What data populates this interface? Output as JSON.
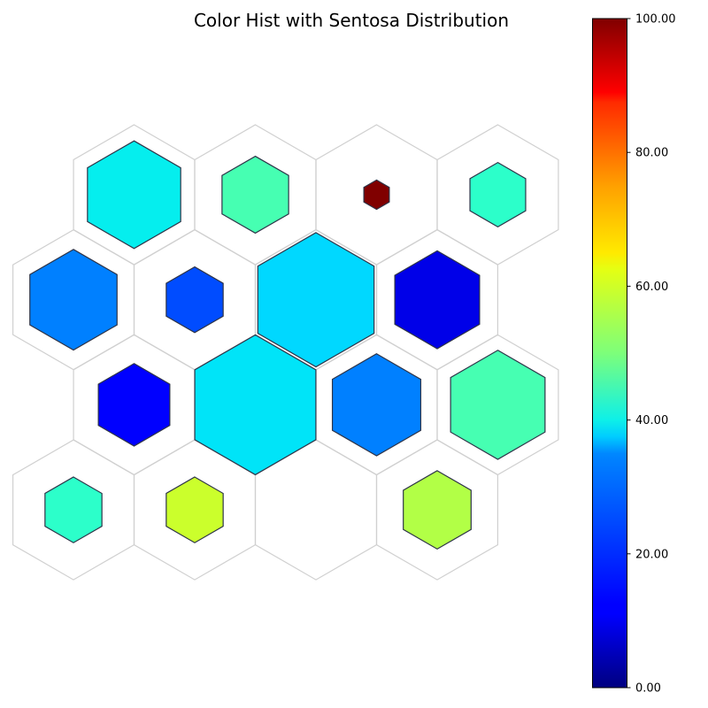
{
  "chart_data": {
    "type": "heatmap",
    "subtype": "hexagonal-som-grid",
    "title": "Color Hist with Sentosa Distribution",
    "grid": {
      "rows": 4,
      "cols": 4,
      "layout": "pointy-top offset hexagons, even rows shifted right"
    },
    "colormap": "jet",
    "colorbar": {
      "vmin": 0,
      "vmax": 100,
      "ticks": [
        0,
        20,
        40,
        60,
        80,
        100
      ],
      "tick_labels": [
        "0.00",
        "20.00",
        "40.00",
        "60.00",
        "80.00",
        "100.00"
      ]
    },
    "cells": [
      {
        "row": 0,
        "col": 0,
        "value": 37,
        "size": 0.77,
        "color": "#05eeee"
      },
      {
        "row": 0,
        "col": 1,
        "value": 46,
        "size": 0.55,
        "color": "#46ffb2"
      },
      {
        "row": 0,
        "col": 2,
        "value": 100,
        "size": 0.21,
        "color": "#800000"
      },
      {
        "row": 0,
        "col": 3,
        "value": 42,
        "size": 0.46,
        "color": "#2cffca"
      },
      {
        "row": 1,
        "col": 0,
        "value": 24,
        "size": 0.72,
        "color": "#0080ff"
      },
      {
        "row": 1,
        "col": 1,
        "value": 19,
        "size": 0.47,
        "color": "#004cff"
      },
      {
        "row": 1,
        "col": 2,
        "value": 33,
        "size": 0.96,
        "color": "#00d8ff"
      },
      {
        "row": 1,
        "col": 3,
        "value": 10,
        "size": 0.7,
        "color": "#0000e8"
      },
      {
        "row": 2,
        "col": 0,
        "value": 12,
        "size": 0.59,
        "color": "#0000ff"
      },
      {
        "row": 2,
        "col": 1,
        "value": 35,
        "size": 1.0,
        "color": "#00e4f8"
      },
      {
        "row": 2,
        "col": 2,
        "value": 24,
        "size": 0.73,
        "color": "#0080ff"
      },
      {
        "row": 2,
        "col": 3,
        "value": 46,
        "size": 0.78,
        "color": "#46ffb2"
      },
      {
        "row": 3,
        "col": 0,
        "value": 42,
        "size": 0.47,
        "color": "#2cffca"
      },
      {
        "row": 3,
        "col": 1,
        "value": 61,
        "size": 0.47,
        "color": "#cbff2c"
      },
      {
        "row": 3,
        "col": 2,
        "value": null,
        "size": 0,
        "color": null
      },
      {
        "row": 3,
        "col": 3,
        "value": 59,
        "size": 0.56,
        "color": "#b2ff46"
      }
    ],
    "xlabel": "",
    "ylabel": "",
    "axes_visible": false
  }
}
